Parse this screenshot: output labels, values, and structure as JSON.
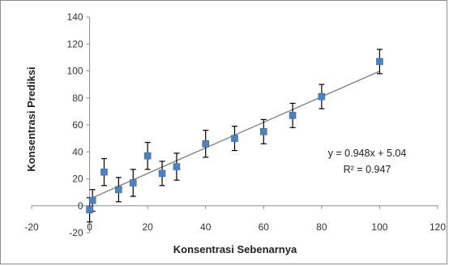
{
  "chart_data": {
    "type": "scatter",
    "title": "",
    "xlabel": "Konsentrasi Sebenarnya",
    "ylabel": "Konsentrasi Prediksi",
    "xlim": [
      -20,
      120
    ],
    "ylim": [
      -20,
      140
    ],
    "x_ticks": [
      -20,
      0,
      20,
      40,
      60,
      80,
      100,
      120
    ],
    "y_ticks": [
      -20,
      0,
      20,
      40,
      60,
      80,
      100,
      120,
      140
    ],
    "x_tick_labels": [
      "-20",
      "0",
      "20",
      "40",
      "60",
      "80",
      "100",
      "120"
    ],
    "y_tick_labels": [
      "-20",
      "0",
      "20",
      "40",
      "60",
      "80",
      "100",
      "120",
      "140"
    ],
    "grid": false,
    "legend": false,
    "marker_color": "#4f81bd",
    "errorbar_color": "#000000",
    "trendline_color": "#7f7f7f",
    "points": [
      {
        "x": 0,
        "y": -3,
        "err": 9
      },
      {
        "x": 1,
        "y": 4,
        "err": 8
      },
      {
        "x": 5,
        "y": 25,
        "err": 10
      },
      {
        "x": 10,
        "y": 12,
        "err": 9
      },
      {
        "x": 15,
        "y": 17,
        "err": 10
      },
      {
        "x": 20,
        "y": 37,
        "err": 10
      },
      {
        "x": 25,
        "y": 24,
        "err": 9
      },
      {
        "x": 30,
        "y": 29,
        "err": 10
      },
      {
        "x": 40,
        "y": 46,
        "err": 10
      },
      {
        "x": 50,
        "y": 50,
        "err": 9
      },
      {
        "x": 60,
        "y": 55,
        "err": 9
      },
      {
        "x": 70,
        "y": 67,
        "err": 9
      },
      {
        "x": 80,
        "y": 81,
        "err": 9
      },
      {
        "x": 100,
        "y": 107,
        "err": 9
      }
    ],
    "trendline": {
      "slope": 0.948,
      "intercept": 5.04,
      "x_range": [
        0,
        100
      ]
    },
    "annotations": {
      "equation": "y = 0.948x + 5.04",
      "r_squared": "R² = 0.947"
    }
  }
}
